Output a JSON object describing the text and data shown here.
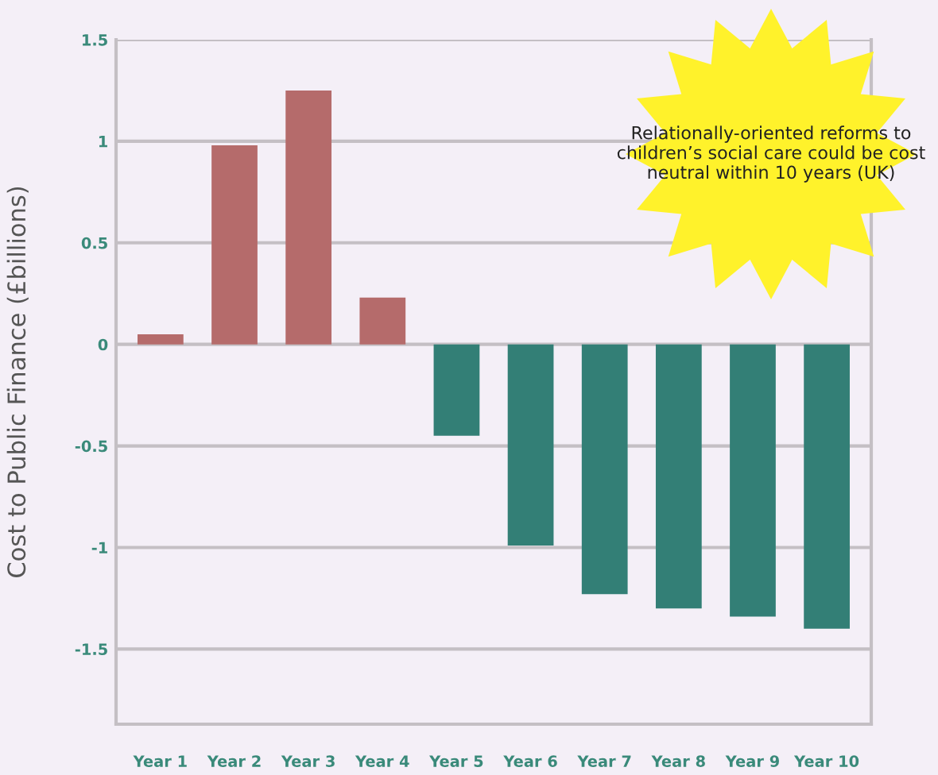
{
  "chart_data": {
    "type": "bar",
    "ylabel": "Cost to Public Finance (£billions)",
    "categories": [
      "Year 1",
      "Year 2",
      "Year 3",
      "Year 4",
      "Year 5",
      "Year 6",
      "Year 7",
      "Year 8",
      "Year 9",
      "Year 10"
    ],
    "values": [
      0.05,
      0.98,
      1.25,
      0.23,
      -0.45,
      -0.99,
      -1.23,
      -1.3,
      -1.34,
      -1.4
    ],
    "colors": [
      "#b56b6b",
      "#b56b6b",
      "#b56b6b",
      "#b56b6b",
      "#337f76",
      "#337f76",
      "#337f76",
      "#337f76",
      "#337f76",
      "#337f76"
    ],
    "ylim": [
      -1.87,
      1.5
    ],
    "yticks": [
      -1.5,
      -1,
      -0.5,
      0,
      0.5,
      1,
      1.5
    ],
    "grid": "y",
    "annotations": [
      "Relationally-oriented reforms to children’s social care could be cost neutral within 10 years (UK)"
    ]
  }
}
